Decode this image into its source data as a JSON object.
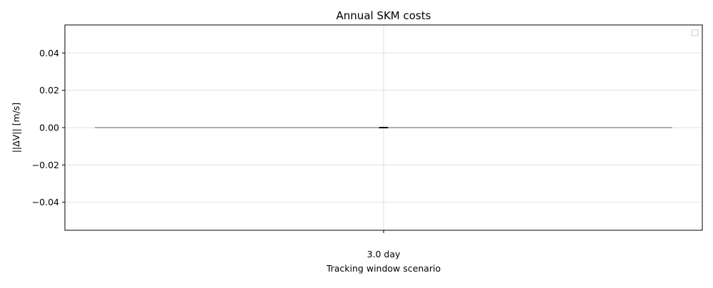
{
  "chart_data": {
    "type": "box",
    "title": "Annual SKM costs",
    "xlabel": "Tracking window scenario",
    "ylabel": "||ΔV|| [m/s]",
    "ylim": [
      -0.055,
      0.055
    ],
    "yticks": [
      -0.04,
      -0.02,
      0.0,
      0.02,
      0.04
    ],
    "ytick_labels": [
      "−0.04",
      "−0.02",
      "0.00",
      "0.02",
      "0.04"
    ],
    "categories": [
      "3.0 day"
    ],
    "series": [
      {
        "values": [
          0.0,
          0.0,
          0.0,
          0.0,
          0.0
        ]
      }
    ],
    "reference_line": {
      "y": 0.0,
      "color": "#808080"
    },
    "grid": true,
    "legend": {
      "placement": "top-right",
      "entries": []
    },
    "colors": {
      "axes": "#000000",
      "grid": "#d9d9d9",
      "median": "#000000"
    }
  }
}
